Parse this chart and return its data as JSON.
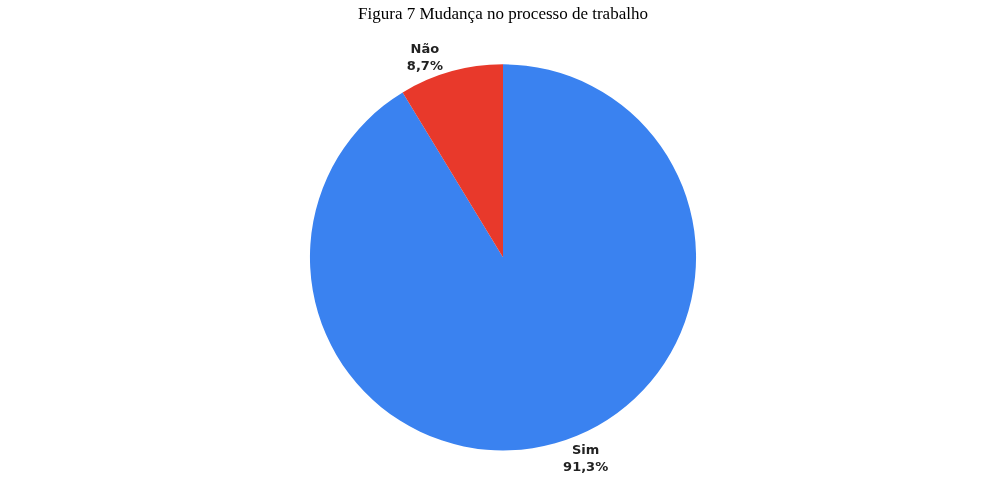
{
  "chart_data": {
    "type": "pie",
    "title": "Figura 7 Mudança no processo de trabalho",
    "categories": [
      "Sim",
      "Não"
    ],
    "values": [
      91.3,
      8.7
    ],
    "value_labels": [
      "91,3%",
      "8,7%"
    ],
    "colors": [
      "#3a82f0",
      "#e8392b"
    ],
    "legend": false
  }
}
